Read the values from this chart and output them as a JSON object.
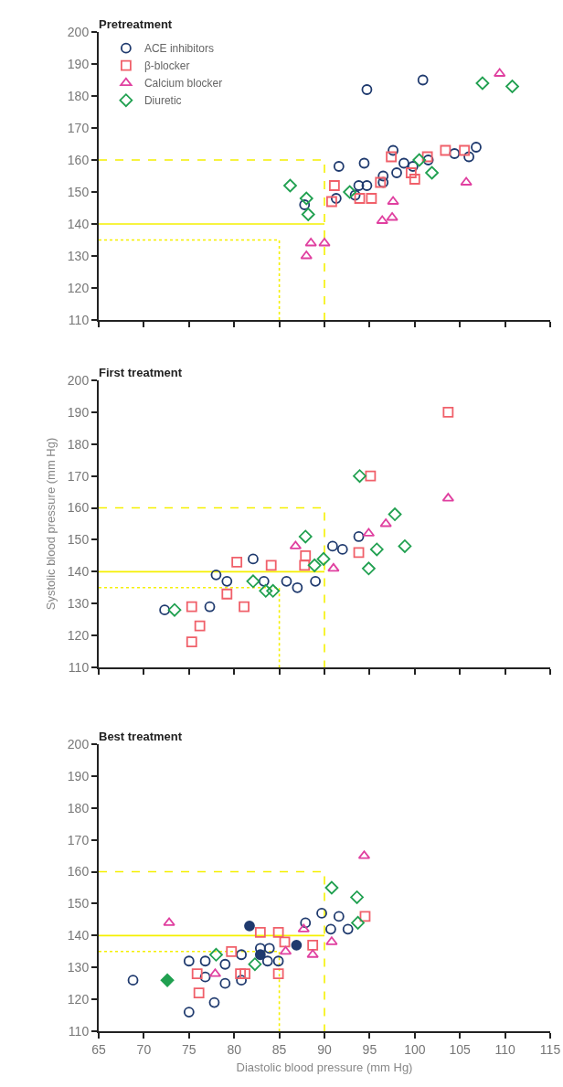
{
  "chart_data": [
    {
      "type": "scatter",
      "title": "Pretreatment",
      "xlim": [
        65,
        115
      ],
      "ylim": [
        110,
        200
      ],
      "xticks": [
        65,
        70,
        75,
        80,
        85,
        90,
        95,
        100,
        105,
        110,
        115
      ],
      "yticks": [
        110,
        120,
        130,
        140,
        150,
        160,
        170,
        180,
        190,
        200
      ],
      "tick_labels": "y",
      "grid": false,
      "legend": "top left",
      "series": [
        {
          "name": "ACE inhibitors",
          "color": "#1f3a6e",
          "marker": "circle",
          "x": [
            94.7,
            100.9,
            91.6,
            94.4,
            97.6,
            98.8,
            99.8,
            101.5,
            104.4,
            106,
            106.8,
            91.3,
            93.4,
            93.8,
            94.7,
            96.5,
            96.5,
            98,
            87.8
          ],
          "values": [
            182,
            185,
            158,
            159,
            163,
            159,
            158,
            160,
            162,
            161,
            164,
            148,
            149,
            152,
            152,
            153,
            155,
            156,
            146
          ]
        },
        {
          "name": "β-blocker",
          "color": "#f0606a",
          "marker": "square",
          "x": [
            91.1,
            90.8,
            93.9,
            95.2,
            96.2,
            97.4,
            100,
            99.6,
            101.4,
            103.4,
            105.5
          ],
          "values": [
            152,
            147,
            148,
            148,
            153,
            161,
            154,
            156,
            161,
            163,
            163
          ]
        },
        {
          "name": "Calcium blocker",
          "color": "#e040a0",
          "marker": "triangle",
          "x": [
            88,
            88.5,
            90,
            96.4,
            97.5,
            97.6,
            105.7,
            109.4
          ],
          "values": [
            130,
            134,
            134,
            141,
            142,
            147,
            153,
            187
          ]
        },
        {
          "name": "Diuretic",
          "color": "#20a050",
          "marker": "diamond",
          "x": [
            86.2,
            88,
            88.2,
            92.8,
            100.5,
            101.9,
            107.5,
            110.8
          ],
          "values": [
            152,
            148,
            143,
            150,
            160,
            156,
            184,
            183
          ]
        },
        {
          "type": "line",
          "color": "#f5f000",
          "line_style": "dashed",
          "x": [
            65,
            90,
            90
          ],
          "values": [
            160,
            160,
            110
          ]
        },
        {
          "type": "line",
          "color": "#f5f000",
          "line_style": "solid",
          "x": [
            65,
            90
          ],
          "values": [
            140,
            140
          ]
        },
        {
          "type": "line",
          "color": "#f5f000",
          "line_style": "dotted",
          "x": [
            65,
            85,
            85
          ],
          "values": [
            135,
            135,
            110
          ]
        }
      ]
    },
    {
      "type": "scatter",
      "title": "First treatment",
      "ylabel": "Systolic blood pressure (mm Hg)",
      "xlim": [
        65,
        115
      ],
      "ylim": [
        110,
        200
      ],
      "xticks": [
        65,
        70,
        75,
        80,
        85,
        90,
        95,
        100,
        105,
        110,
        115
      ],
      "yticks": [
        110,
        120,
        130,
        140,
        150,
        160,
        170,
        180,
        190,
        200
      ],
      "tick_labels": "y",
      "grid": false,
      "series": [
        {
          "color": "#1f3a6e",
          "marker": "circle",
          "x": [
            93.8,
            90.9,
            92,
            82.1,
            78,
            79.2,
            83.3,
            85.8,
            87,
            89,
            72.3,
            77.3
          ],
          "values": [
            151,
            148,
            147,
            144,
            139,
            137,
            137,
            137,
            135,
            137,
            128,
            129
          ]
        },
        {
          "color": "#f0606a",
          "marker": "square",
          "x": [
            103.7,
            95.1,
            93.8,
            87.9,
            87.8,
            80.3,
            84.1,
            79.2,
            81.1,
            75.3,
            76.2,
            75.3
          ],
          "values": [
            190,
            170,
            146,
            145,
            142,
            143,
            142,
            133,
            129,
            129,
            123,
            118
          ]
        },
        {
          "color": "#e040a0",
          "marker": "triangle",
          "x": [
            103.7,
            96.8,
            94.9,
            86.8,
            91
          ],
          "values": [
            163,
            155,
            152,
            148,
            141
          ]
        },
        {
          "color": "#20a050",
          "marker": "diamond",
          "x": [
            93.9,
            97.8,
            87.9,
            95.8,
            98.9,
            89.9,
            88.9,
            94.9,
            82.1,
            83.5,
            84.3,
            73.4
          ],
          "values": [
            170,
            158,
            151,
            147,
            148,
            144,
            142,
            141,
            137,
            134,
            134,
            128
          ]
        },
        {
          "type": "line",
          "color": "#f5f000",
          "line_style": "dashed",
          "x": [
            65,
            90,
            90
          ],
          "values": [
            160,
            160,
            110
          ]
        },
        {
          "type": "line",
          "color": "#f5f000",
          "line_style": "solid",
          "x": [
            65,
            90
          ],
          "values": [
            140,
            140
          ]
        },
        {
          "type": "line",
          "color": "#f5f000",
          "line_style": "dotted",
          "x": [
            65,
            85,
            85
          ],
          "values": [
            135,
            135,
            110
          ]
        }
      ]
    },
    {
      "type": "scatter",
      "title": "Best treatment",
      "xlabel": "Diastolic blood pressure (mm Hg)",
      "xlim": [
        65,
        115
      ],
      "ylim": [
        110,
        200
      ],
      "xticks": [
        65,
        70,
        75,
        80,
        85,
        90,
        95,
        100,
        105,
        110,
        115
      ],
      "yticks": [
        110,
        120,
        130,
        140,
        150,
        160,
        170,
        180,
        190,
        200
      ],
      "grid": false,
      "series": [
        {
          "color": "#1f3a6e",
          "marker": "circle",
          "x": [
            68.8,
            75,
            77.8,
            75,
            76.8,
            76.8,
            79,
            79,
            80.8,
            80.8,
            82.9,
            83.9,
            83.7,
            84.9,
            87.9,
            89.7,
            90.7,
            91.6,
            92.6
          ],
          "values": [
            126,
            116,
            119,
            132,
            132,
            127,
            131,
            125,
            126,
            134,
            136,
            136,
            132,
            132,
            144,
            147,
            142,
            146,
            142
          ]
        },
        {
          "color": "#1f3a6e",
          "marker": "circle",
          "x": [
            81.7,
            82.9,
            86.9
          ],
          "values": [
            143,
            134,
            137
          ]
        },
        {
          "color": "#f0606a",
          "marker": "square",
          "x": [
            75.9,
            76.1,
            79.7,
            80.7,
            81.2,
            82.9,
            84.9,
            84.9,
            85.6,
            88.7,
            94.5
          ],
          "values": [
            128,
            122,
            135,
            128,
            128,
            141,
            141,
            128,
            138,
            137,
            146
          ]
        },
        {
          "color": "#e040a0",
          "marker": "triangle",
          "x": [
            72.8,
            77.9,
            85.7,
            87.7,
            88.7,
            90.8,
            94.4
          ],
          "values": [
            144,
            128,
            135,
            142,
            134,
            138,
            165
          ]
        },
        {
          "color": "#20a050",
          "marker": "diamond",
          "x": [
            78,
            82.3,
            90.8,
            93.6,
            93.7
          ],
          "values": [
            134,
            131,
            155,
            152,
            144
          ]
        },
        {
          "color": "#20a050",
          "marker": "diamond",
          "x": [
            72.6
          ],
          "values": [
            126
          ]
        },
        {
          "type": "line",
          "color": "#f5f000",
          "line_style": "dashed",
          "x": [
            65,
            90,
            90
          ],
          "values": [
            160,
            160,
            110
          ]
        },
        {
          "type": "line",
          "color": "#f5f000",
          "line_style": "solid",
          "x": [
            65,
            90
          ],
          "values": [
            140,
            140
          ]
        },
        {
          "type": "line",
          "color": "#f5f000",
          "line_style": "dotted",
          "x": [
            65,
            85,
            85
          ],
          "values": [
            135,
            135,
            110
          ]
        }
      ]
    }
  ]
}
